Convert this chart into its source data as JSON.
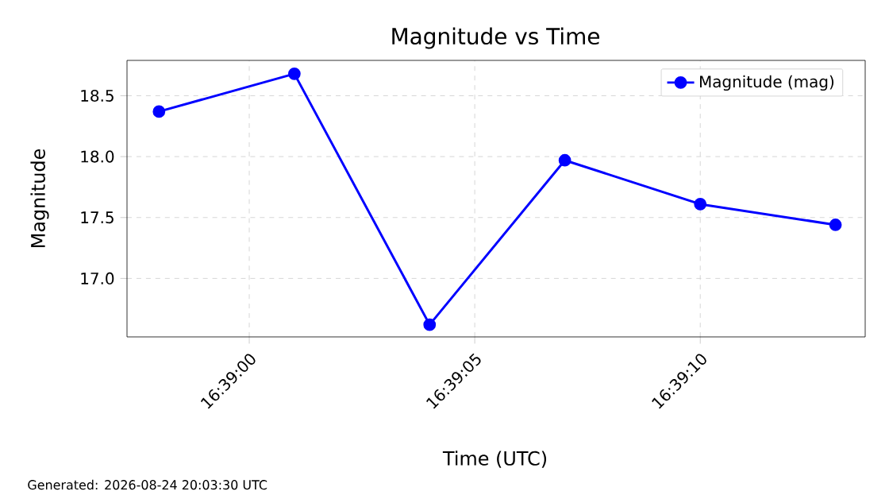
{
  "chart_data": {
    "type": "line",
    "title": "Magnitude vs Time",
    "xlabel": "Time (UTC)",
    "ylabel": "Magnitude",
    "annotations": [
      "Generated: 2026-08-24 20:03:30 UTC"
    ],
    "x": [
      16.649444,
      16.650278,
      16.651111,
      16.651944,
      16.652778,
      16.653611
    ],
    "series": [
      {
        "name": "Magnitude (mag)",
        "color": "#0000ff",
        "values": [
          18.37,
          18.68,
          16.62,
          17.97,
          17.61,
          17.44
        ]
      }
    ],
    "xlim": [
      16.649247,
      16.653794
    ],
    "xticks": [
      {
        "value": 16.65,
        "label": "16:39:00"
      },
      {
        "value": 16.651389,
        "label": "16:39:05"
      },
      {
        "value": 16.652778,
        "label": "16:39:10"
      }
    ],
    "ylim": [
      16.52,
      18.79
    ],
    "yticks": [
      {
        "value": 17.0,
        "label": "17.0"
      },
      {
        "value": 17.5,
        "label": "17.5"
      },
      {
        "value": 18.0,
        "label": "18.0"
      },
      {
        "value": 18.5,
        "label": "18.5"
      }
    ],
    "grid": true,
    "legend": "top right",
    "marker": "circle",
    "line_style": "solid"
  }
}
